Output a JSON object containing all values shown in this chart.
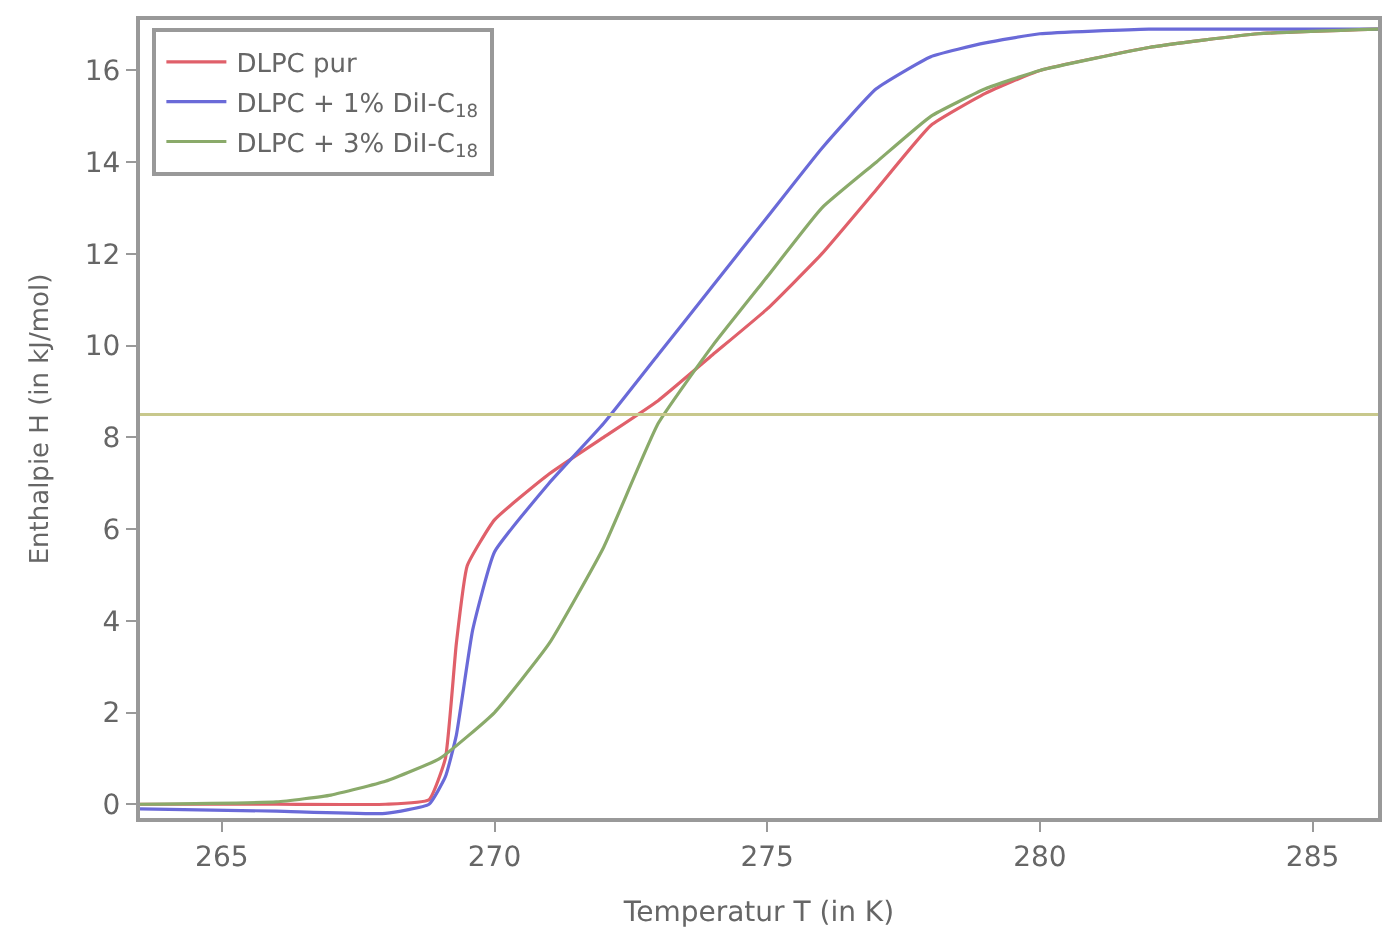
{
  "chart_data": {
    "type": "line",
    "xlabel": "Temperatur T (in K)",
    "ylabel": "Enthalpie H (in kJ/mol)",
    "xlim": [
      263.5,
      286.2
    ],
    "xticks": [
      265,
      270,
      275,
      280,
      285
    ],
    "ylim": [
      -0.3,
      17.1
    ],
    "yticks": [
      0,
      2,
      4,
      6,
      8,
      10,
      12,
      14,
      16
    ],
    "legend": "top left",
    "line_style": "solid",
    "marker": "none",
    "ref_lines": [
      {
        "axis": "y",
        "value": 8.5,
        "color": "#c8c88c"
      }
    ],
    "series": [
      {
        "name": "DLPC pur",
        "color": "#e0606a",
        "x": [
          263.5,
          266,
          268,
          268.8,
          269.1,
          269.3,
          269.5,
          270,
          271,
          272,
          273,
          274,
          275,
          276,
          277,
          278,
          279,
          280,
          282,
          284,
          286.2
        ],
        "values": [
          0,
          0,
          0,
          0.1,
          1.0,
          3.5,
          5.2,
          6.2,
          7.2,
          8.0,
          8.8,
          9.8,
          10.8,
          12.0,
          13.4,
          14.8,
          15.5,
          16.0,
          16.5,
          16.8,
          16.9
        ]
      },
      {
        "name": "DLPC + 1% DiI-C$_{18}$",
        "color": "#6a6ad8",
        "x": [
          263.5,
          266,
          268,
          268.8,
          269.1,
          269.3,
          269.6,
          270,
          271,
          272,
          273,
          274,
          275,
          276,
          277,
          278,
          279,
          280,
          282,
          284,
          286.2
        ],
        "values": [
          -0.1,
          -0.15,
          -0.2,
          0,
          0.6,
          1.5,
          3.8,
          5.5,
          7.0,
          8.3,
          9.8,
          11.3,
          12.8,
          14.3,
          15.6,
          16.3,
          16.6,
          16.8,
          16.9,
          16.9,
          16.9
        ]
      },
      {
        "name": "DLPC + 3% DiI-C$_{18}$",
        "color": "#8aaa6a",
        "x": [
          263.5,
          266,
          267,
          268,
          269,
          270,
          271,
          272,
          273,
          274,
          275,
          276,
          277,
          278,
          279,
          280,
          282,
          284,
          286.2
        ],
        "values": [
          0,
          0.05,
          0.2,
          0.5,
          1.0,
          2.0,
          3.5,
          5.6,
          8.3,
          10.0,
          11.5,
          13.0,
          14.0,
          15.0,
          15.6,
          16.0,
          16.5,
          16.8,
          16.9
        ]
      }
    ]
  }
}
